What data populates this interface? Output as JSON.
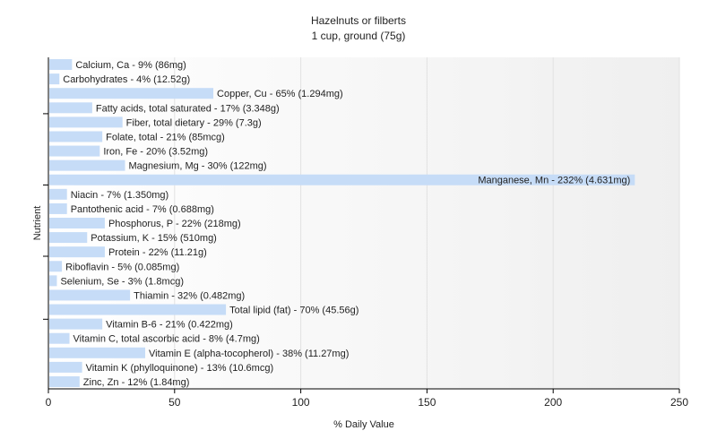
{
  "chart_data": {
    "type": "bar",
    "orientation": "horizontal",
    "title": "Hazelnuts or filberts",
    "subtitle": "1 cup, ground (75g)",
    "xlabel": "% Daily Value",
    "ylabel": "Nutrient",
    "xlim": [
      0,
      250
    ],
    "xticks": [
      0,
      50,
      100,
      150,
      200,
      250
    ],
    "grid": true,
    "bar_color": "#c6dcf7",
    "categories": [
      "Calcium, Ca",
      "Carbohydrates",
      "Copper, Cu",
      "Fatty acids, total saturated",
      "Fiber, total dietary",
      "Folate, total",
      "Iron, Fe",
      "Magnesium, Mg",
      "Manganese, Mn",
      "Niacin",
      "Pantothenic acid",
      "Phosphorus, P",
      "Potassium, K",
      "Protein",
      "Riboflavin",
      "Selenium, Se",
      "Thiamin",
      "Total lipid (fat)",
      "Vitamin B-6",
      "Vitamin C, total ascorbic acid",
      "Vitamin E (alpha-tocopherol)",
      "Vitamin K (phylloquinone)",
      "Zinc, Zn"
    ],
    "values": [
      9,
      4,
      65,
      17,
      29,
      21,
      20,
      30,
      232,
      7,
      7,
      22,
      15,
      22,
      5,
      3,
      32,
      70,
      21,
      8,
      38,
      13,
      12
    ],
    "labels": [
      "Calcium, Ca - 9% (86mg)",
      "Carbohydrates - 4% (12.52g)",
      "Copper, Cu - 65% (1.294mg)",
      "Fatty acids, total saturated - 17% (3.348g)",
      "Fiber, total dietary - 29% (7.3g)",
      "Folate, total - 21% (85mcg)",
      "Iron, Fe - 20% (3.52mg)",
      "Magnesium, Mg - 30% (122mg)",
      "Manganese, Mn - 232% (4.631mg)",
      "Niacin - 7% (1.350mg)",
      "Pantothenic acid - 7% (0.688mg)",
      "Phosphorus, P - 22% (218mg)",
      "Potassium, K - 15% (510mg)",
      "Protein - 22% (11.21g)",
      "Riboflavin - 5% (0.085mg)",
      "Selenium, Se - 3% (1.8mcg)",
      "Thiamin - 32% (0.482mg)",
      "Total lipid (fat) - 70% (45.56g)",
      "Vitamin B-6 - 21% (0.422mg)",
      "Vitamin C, total ascorbic acid - 8% (4.7mg)",
      "Vitamin E (alpha-tocopherol) - 38% (11.27mg)",
      "Vitamin K (phylloquinone) - 13% (10.6mcg)",
      "Zinc, Zn - 12% (1.84mg)"
    ]
  }
}
